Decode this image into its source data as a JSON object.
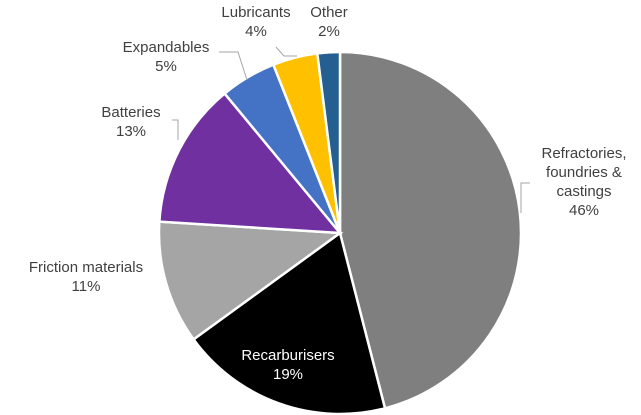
{
  "chart_data": {
    "type": "pie",
    "title": "",
    "slices": [
      {
        "label": "Refractories, foundries & castings",
        "label_lines": [
          "Refractories,",
          "foundries &",
          "castings"
        ],
        "value": 46,
        "value_label": "46%",
        "color": "#7f7f7f"
      },
      {
        "label": "Recarburisers",
        "label_lines": [
          "Recarburisers"
        ],
        "value": 19,
        "value_label": "19%",
        "color": "#000000"
      },
      {
        "label": "Friction materials",
        "label_lines": [
          "Friction materials"
        ],
        "value": 11,
        "value_label": "11%",
        "color": "#a5a5a5"
      },
      {
        "label": "Batteries",
        "label_lines": [
          "Batteries"
        ],
        "value": 13,
        "value_label": "13%",
        "color": "#7030a0"
      },
      {
        "label": "Expandables",
        "label_lines": [
          "Expandables"
        ],
        "value": 5,
        "value_label": "5%",
        "color": "#4472c4"
      },
      {
        "label": "Lubricants",
        "label_lines": [
          "Lubricants"
        ],
        "value": 4,
        "value_label": "4%",
        "color": "#ffc000"
      },
      {
        "label": "Other",
        "label_lines": [
          "Other"
        ],
        "value": 2,
        "value_label": "2%",
        "color": "#255e91"
      }
    ],
    "legend": "none",
    "data_labels": "category-and-percent"
  }
}
